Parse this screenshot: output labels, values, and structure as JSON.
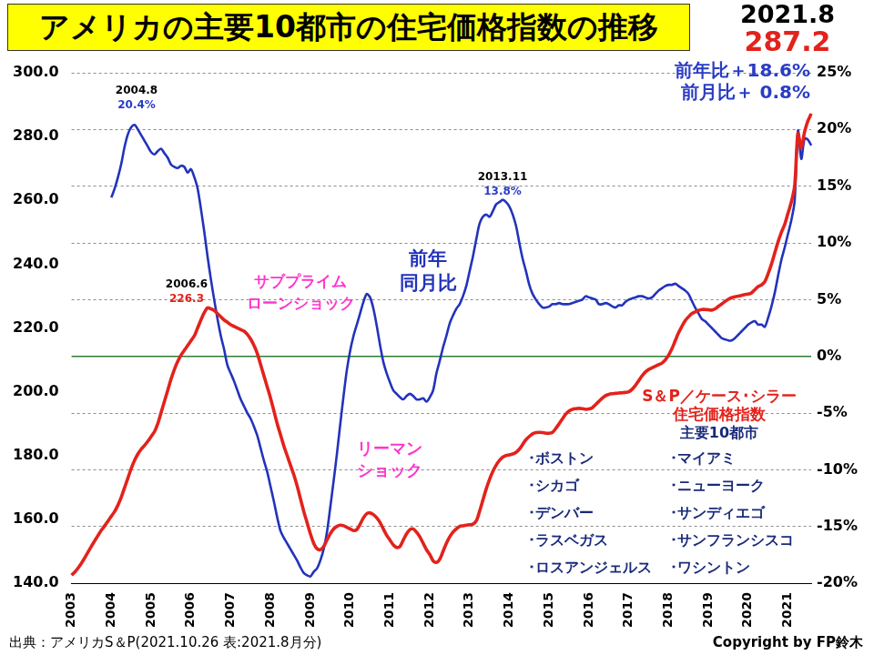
{
  "chart_data": {
    "type": "line",
    "title": "アメリカの主要10都市の住宅価格指数の推移",
    "header": {
      "date": "2021.8",
      "value": 287.2,
      "yoy": "前年比＋18.6%",
      "mom": "前月比＋ 0.8%"
    },
    "source": "出典：アメリカS＆P(2021.10.26 表:2021.8月分)",
    "copyright": "Copyright by FP鈴木",
    "categories": [
      "2003",
      null,
      null,
      null,
      null,
      null,
      null,
      null,
      null,
      null,
      null,
      null,
      "2004",
      null,
      null,
      null,
      null,
      null,
      null,
      null,
      null,
      null,
      null,
      null,
      "2005",
      null,
      null,
      null,
      null,
      null,
      null,
      null,
      null,
      null,
      null,
      null,
      "2006",
      null,
      null,
      null,
      null,
      null,
      null,
      null,
      null,
      null,
      null,
      null,
      "2007",
      null,
      null,
      null,
      null,
      null,
      null,
      null,
      null,
      null,
      null,
      null,
      "2008",
      null,
      null,
      null,
      null,
      null,
      null,
      null,
      null,
      null,
      null,
      null,
      "2009",
      null,
      null,
      null,
      null,
      null,
      null,
      null,
      null,
      null,
      null,
      null,
      "2010",
      null,
      null,
      null,
      null,
      null,
      null,
      null,
      null,
      null,
      null,
      null,
      "2011",
      null,
      null,
      null,
      null,
      null,
      null,
      null,
      null,
      null,
      null,
      null,
      "2012",
      null,
      null,
      null,
      null,
      null,
      null,
      null,
      null,
      null,
      null,
      null,
      "2013",
      null,
      null,
      null,
      null,
      null,
      null,
      null,
      null,
      null,
      null,
      null,
      "2014",
      null,
      null,
      null,
      null,
      null,
      null,
      null,
      null,
      null,
      null,
      null,
      "2015",
      null,
      null,
      null,
      null,
      null,
      null,
      null,
      null,
      null,
      null,
      null,
      "2016",
      null,
      null,
      null,
      null,
      null,
      null,
      null,
      null,
      null,
      null,
      null,
      "2017",
      null,
      null,
      null,
      null,
      null,
      null,
      null,
      null,
      null,
      null,
      null,
      "2018",
      null,
      null,
      null,
      null,
      null,
      null,
      null,
      null,
      null,
      null,
      null,
      "2019",
      null,
      null,
      null,
      null,
      null,
      null,
      null,
      null,
      null,
      null,
      null,
      "2020",
      null,
      null,
      null,
      null,
      null,
      null,
      null,
      null,
      null,
      null,
      null,
      "2021",
      null,
      null,
      null,
      null,
      null,
      null,
      null
    ],
    "series": [
      {
        "name": "S＆P／ケース･シラー\n住宅価格指数",
        "color": "#e3221b",
        "values": [
          142.5,
          143.5,
          144.8,
          146.3,
          148.0,
          149.8,
          151.6,
          153.3,
          155.0,
          156.6,
          158.0,
          159.5,
          161.0,
          162.5,
          164.5,
          167.0,
          170.0,
          173.0,
          176.0,
          178.5,
          180.5,
          182.0,
          183.2,
          184.5,
          186.0,
          187.5,
          190.0,
          193.5,
          197.0,
          200.5,
          204.0,
          207.0,
          209.5,
          211.5,
          213.0,
          214.5,
          216.0,
          217.5,
          220.0,
          222.5,
          224.8,
          226.3,
          226.0,
          225.5,
          224.5,
          223.5,
          222.5,
          221.8,
          221.0,
          220.5,
          220.0,
          219.5,
          219.0,
          218.0,
          216.5,
          214.5,
          212.0,
          208.5,
          205.0,
          201.5,
          198.0,
          194.0,
          190.0,
          186.5,
          183.0,
          180.0,
          177.0,
          174.0,
          170.5,
          166.5,
          162.5,
          159.0,
          155.5,
          152.5,
          150.8,
          150.5,
          151.5,
          153.5,
          155.5,
          157.0,
          157.8,
          158.2,
          158.0,
          157.5,
          157.0,
          156.5,
          156.8,
          158.5,
          160.5,
          161.8,
          162.0,
          161.5,
          160.5,
          159.0,
          157.0,
          155.0,
          153.5,
          152.0,
          151.2,
          151.5,
          153.5,
          155.5,
          156.8,
          157.0,
          156.0,
          154.5,
          152.5,
          150.5,
          149.0,
          147.0,
          146.5,
          147.5,
          150.0,
          152.5,
          154.5,
          156.0,
          157.0,
          157.8,
          158.0,
          158.2,
          158.3,
          158.5,
          159.5,
          162.5,
          166.0,
          169.5,
          172.5,
          175.0,
          177.0,
          178.5,
          179.5,
          180.0,
          180.2,
          180.5,
          181.0,
          182.0,
          183.5,
          185.0,
          186.0,
          186.8,
          187.2,
          187.3,
          187.2,
          187.0,
          187.0,
          187.3,
          188.5,
          190.0,
          191.5,
          193.0,
          194.0,
          194.5,
          194.7,
          194.8,
          194.7,
          194.5,
          194.6,
          195.0,
          196.0,
          197.0,
          198.0,
          198.8,
          199.2,
          199.4,
          199.5,
          199.6,
          199.7,
          199.8,
          200.0,
          200.8,
          202.0,
          203.5,
          205.0,
          206.2,
          207.0,
          207.5,
          208.0,
          208.5,
          209.0,
          210.0,
          211.5,
          213.5,
          216.0,
          218.5,
          220.5,
          222.3,
          223.5,
          224.5,
          225.0,
          225.5,
          225.8,
          225.8,
          225.7,
          225.6,
          226.0,
          226.8,
          227.5,
          228.3,
          229.0,
          229.5,
          229.8,
          230.0,
          230.2,
          230.5,
          230.6,
          231.0,
          232.0,
          233.0,
          233.5,
          234.5,
          237.0,
          240.0,
          243.5,
          247.0,
          250.0,
          252.5,
          256.0,
          259.5,
          264.5,
          281.0,
          276.5,
          281.5,
          284.9,
          287.2
        ]
      },
      {
        "name": "前年\n同月比",
        "color": "#2233bb",
        "axis": "y2",
        "values": [
          null,
          null,
          null,
          null,
          null,
          null,
          null,
          null,
          null,
          null,
          null,
          null,
          14.0,
          14.8,
          15.8,
          17.0,
          18.5,
          19.6,
          20.2,
          20.4,
          20.0,
          19.5,
          19.0,
          18.5,
          18.0,
          17.8,
          18.1,
          18.3,
          17.9,
          17.5,
          16.9,
          16.7,
          16.6,
          16.8,
          16.7,
          16.2,
          16.5,
          15.8,
          14.8,
          13.0,
          11.0,
          8.8,
          6.8,
          5.0,
          3.3,
          1.8,
          0.6,
          -0.8,
          -1.5,
          -2.2,
          -3.0,
          -3.8,
          -4.4,
          -5.0,
          -5.5,
          -6.2,
          -7.0,
          -8.1,
          -9.2,
          -10.2,
          -11.5,
          -12.8,
          -14.2,
          -15.4,
          -16.0,
          -16.5,
          -17.0,
          -17.5,
          -18.0,
          -18.6,
          -19.1,
          -19.3,
          -19.4,
          -19.0,
          -18.7,
          -18.0,
          -17.0,
          -15.5,
          -13.3,
          -11.0,
          -8.6,
          -6.0,
          -3.5,
          -1.2,
          0.5,
          1.8,
          2.8,
          3.8,
          4.8,
          5.5,
          5.2,
          4.2,
          2.7,
          1.0,
          -0.5,
          -1.5,
          -2.3,
          -3.0,
          -3.3,
          -3.6,
          -3.8,
          -3.5,
          -3.3,
          -3.5,
          -3.8,
          -3.8,
          -3.7,
          -4.0,
          -3.6,
          -3.0,
          -1.5,
          -0.4,
          0.8,
          1.8,
          2.9,
          3.6,
          4.2,
          4.6,
          5.3,
          6.2,
          7.5,
          8.8,
          10.3,
          11.7,
          12.3,
          12.5,
          12.3,
          12.8,
          13.4,
          13.6,
          13.8,
          13.6,
          13.2,
          12.5,
          11.5,
          10.0,
          8.6,
          7.5,
          6.3,
          5.5,
          5.0,
          4.6,
          4.3,
          4.3,
          4.4,
          4.6,
          4.6,
          4.7,
          4.6,
          4.6,
          4.6,
          4.7,
          4.8,
          4.9,
          5.0,
          5.3,
          5.2,
          5.1,
          5.0,
          4.6,
          4.6,
          4.7,
          4.6,
          4.4,
          4.3,
          4.5,
          4.5,
          4.8,
          5.0,
          5.1,
          5.2,
          5.3,
          5.3,
          5.2,
          5.1,
          5.2,
          5.5,
          5.8,
          6.0,
          6.2,
          6.3,
          6.3,
          6.4,
          6.2,
          6.0,
          5.8,
          5.5,
          4.9,
          4.3,
          3.8,
          3.3,
          3.1,
          2.8,
          2.5,
          2.2,
          1.9,
          1.6,
          1.5,
          1.4,
          1.4,
          1.6,
          1.9,
          2.2,
          2.5,
          2.8,
          3.0,
          3.1,
          2.8,
          2.8,
          2.6,
          3.4,
          4.4,
          5.6,
          7.1,
          8.5,
          9.6,
          10.8,
          12.0,
          13.7,
          19.9,
          17.4,
          19.2,
          19.1,
          18.6
        ]
      }
    ],
    "ylim": [
      140,
      300
    ],
    "yticks": [
      {
        "value": 140,
        "label": "140.0"
      },
      {
        "value": 160,
        "label": "160.0"
      },
      {
        "value": 180,
        "label": "180.0"
      },
      {
        "value": 200,
        "label": "200.0"
      },
      {
        "value": 220,
        "label": "220.0"
      },
      {
        "value": 240,
        "label": "240.0"
      },
      {
        "value": 260,
        "label": "260.0"
      },
      {
        "value": 280,
        "label": "280.0"
      },
      {
        "value": 300,
        "label": "300.0"
      }
    ],
    "y2lim": [
      -20,
      25
    ],
    "y2ticks": [
      {
        "value": -20,
        "label": "-20%"
      },
      {
        "value": -15,
        "label": "-15%"
      },
      {
        "value": -10,
        "label": "-10%"
      },
      {
        "value": -5,
        "label": "-5%"
      },
      {
        "value": 0,
        "label": "0%"
      },
      {
        "value": 5,
        "label": "5%"
      },
      {
        "value": 10,
        "label": "10%"
      },
      {
        "value": 15,
        "label": "15%"
      },
      {
        "value": 20,
        "label": "20%"
      },
      {
        "value": 25,
        "label": "25%"
      }
    ],
    "grid": true,
    "annotations": [
      {
        "text": "2004.8",
        "color": "#000000"
      },
      {
        "text": "20.4%",
        "color": "#2a3cc4"
      },
      {
        "text": "2006.6",
        "color": "#000000"
      },
      {
        "text": "226.3",
        "color": "#e3221b"
      },
      {
        "text": "2013.11",
        "color": "#000000"
      },
      {
        "text": "13.8%",
        "color": "#2a3cc4"
      },
      {
        "text": "サブプライム\nローンショック",
        "color": "#ff33cc"
      },
      {
        "text": "リーマン\nショック",
        "color": "#ff33cc"
      },
      {
        "text": "主要10都市",
        "color": "#1a2a7a"
      },
      {
        "text": "･ボストン\n･シカゴ\n･デンバー\n･ラスベガス\n･ロスアンジェルス",
        "color": "#1a2a7a"
      },
      {
        "text": "･マイアミ\n･ニューヨーク\n･サンディエゴ\n･サンフランシスコ\n･ワシントン",
        "color": "#1a2a7a"
      }
    ]
  }
}
